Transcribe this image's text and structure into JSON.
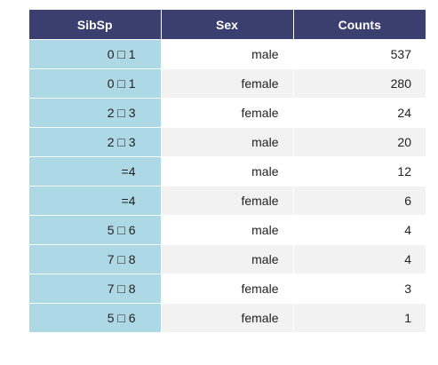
{
  "chart_data": {
    "type": "table",
    "columns": [
      "SibSp",
      "Sex",
      "Counts"
    ],
    "rows": [
      {
        "sibsp": "0 □ 1",
        "sex": "male",
        "count": "537"
      },
      {
        "sibsp": "0 □ 1",
        "sex": "female",
        "count": "280"
      },
      {
        "sibsp": "2 □ 3",
        "sex": "female",
        "count": "24"
      },
      {
        "sibsp": "2 □ 3",
        "sex": "male",
        "count": "20"
      },
      {
        "sibsp": "=4",
        "sex": "male",
        "count": "12"
      },
      {
        "sibsp": "=4",
        "sex": "female",
        "count": "6"
      },
      {
        "sibsp": "5 □ 6",
        "sex": "male",
        "count": "4"
      },
      {
        "sibsp": "7 □ 8",
        "sex": "male",
        "count": "4"
      },
      {
        "sibsp": "7 □ 8",
        "sex": "female",
        "count": "3"
      },
      {
        "sibsp": "5 □ 6",
        "sex": "female",
        "count": "1"
      }
    ]
  },
  "colors": {
    "header_bg": "#3a3f6f",
    "index_bg": "#add8e6",
    "stripe_bg": "#f2f2f2"
  }
}
